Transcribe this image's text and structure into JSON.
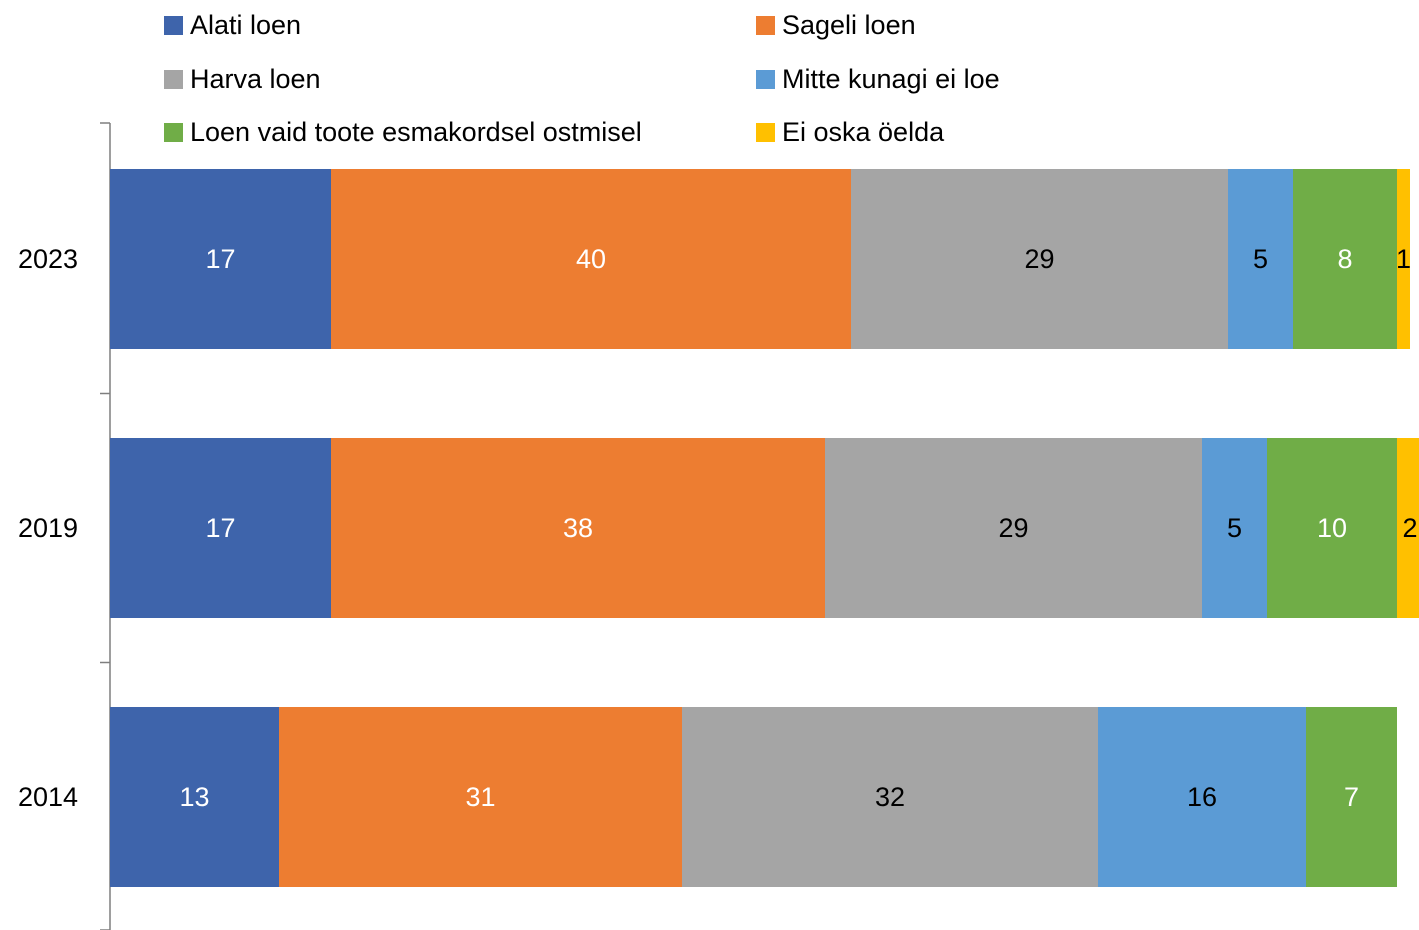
{
  "chart_data": {
    "type": "bar",
    "orientation": "horizontal",
    "stacked": true,
    "categories": [
      "2023",
      "2019",
      "2014"
    ],
    "series": [
      {
        "name": "Alati loen",
        "color": "#3E64AB",
        "label_color": "#FFFFFF",
        "values": [
          17,
          17,
          13
        ]
      },
      {
        "name": "Sageli loen",
        "color": "#ED7D31",
        "label_color": "#FFFFFF",
        "values": [
          40,
          38,
          31
        ]
      },
      {
        "name": "Harva loen",
        "color": "#A5A5A5",
        "label_color": "#000000",
        "values": [
          29,
          29,
          32
        ]
      },
      {
        "name": "Mitte kunagi ei loe",
        "color": "#5B9BD5",
        "label_color": "#000000",
        "values": [
          5,
          5,
          16
        ]
      },
      {
        "name": "Loen vaid toote esmakordsel ostmisel",
        "color": "#70AD47",
        "label_color": "#FFFFFF",
        "values": [
          8,
          10,
          7
        ]
      },
      {
        "name": "Ei oska öelda",
        "color": "#FFC000",
        "label_color": "#000000",
        "values": [
          1,
          2,
          null
        ]
      }
    ],
    "xlim": [
      0,
      100
    ],
    "grid": false,
    "legend_position": "top",
    "legend_columns": 2
  }
}
